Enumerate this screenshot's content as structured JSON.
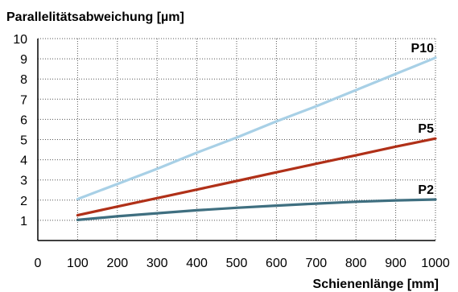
{
  "chart_data": {
    "type": "line",
    "ylabel": "Parallelitätsabweichung [µm]",
    "xlabel": "Schienenlänge [mm]",
    "xlim": [
      0,
      1000
    ],
    "ylim": [
      0,
      10
    ],
    "x_ticks": [
      0,
      100,
      200,
      300,
      400,
      500,
      600,
      700,
      800,
      900,
      1000
    ],
    "y_ticks": [
      1,
      2,
      3,
      4,
      5,
      6,
      7,
      8,
      9,
      10
    ],
    "grid": true,
    "legend": "inline at line ends",
    "series": [
      {
        "name": "P10",
        "color": "#a8d0e6",
        "x": [
          100,
          200,
          300,
          400,
          500,
          600,
          700,
          800,
          900,
          1000
        ],
        "y": [
          2.05,
          2.8,
          3.55,
          4.35,
          5.1,
          5.9,
          6.65,
          7.45,
          8.25,
          9.05
        ]
      },
      {
        "name": "P5",
        "color": "#b03018",
        "x": [
          100,
          200,
          300,
          400,
          500,
          600,
          700,
          800,
          900,
          1000
        ],
        "y": [
          1.25,
          1.68,
          2.1,
          2.52,
          2.95,
          3.38,
          3.8,
          4.22,
          4.65,
          5.05
        ]
      },
      {
        "name": "P2",
        "color": "#3f6f80",
        "x": [
          100,
          200,
          300,
          400,
          500,
          600,
          700,
          800,
          900,
          1000
        ],
        "y": [
          1.02,
          1.2,
          1.35,
          1.5,
          1.62,
          1.73,
          1.83,
          1.92,
          1.99,
          2.03
        ]
      }
    ]
  }
}
